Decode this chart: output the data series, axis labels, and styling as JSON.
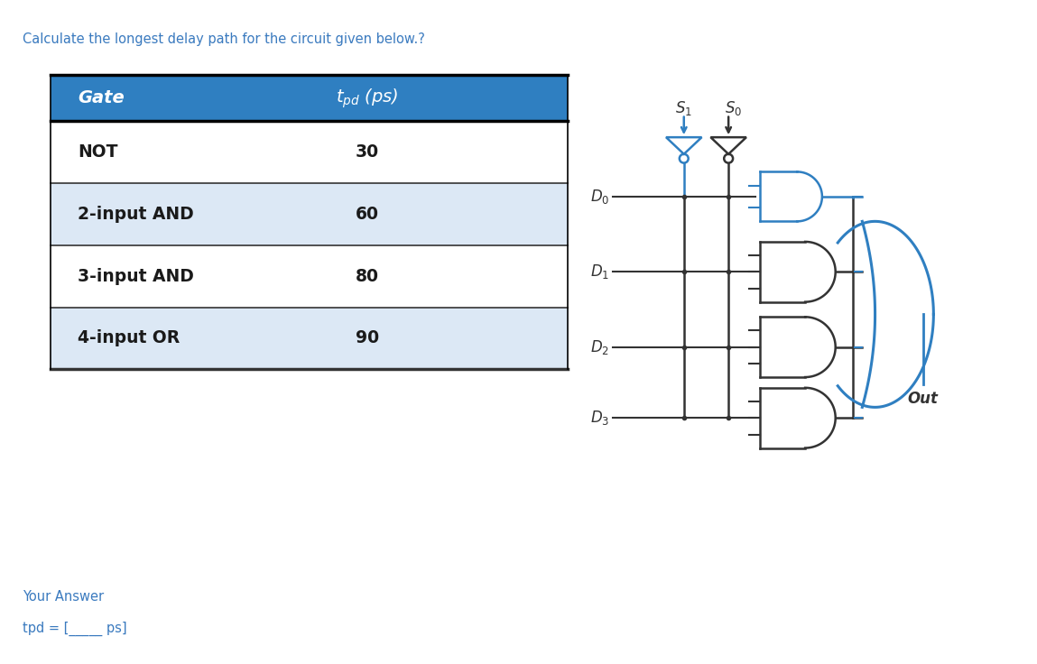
{
  "title_text": "Calculate the longest delay path for the circuit given below.?",
  "title_color": "#3a7abf",
  "title_fontsize": 10.5,
  "table_header_bg": "#2f7fc1",
  "table_header_text_color": "#ffffff",
  "table_row_bg_alt": "#dce8f5",
  "table_row_bg_white": "#ffffff",
  "gates": [
    "NOT",
    "2-input AND",
    "3-input AND",
    "4-input OR"
  ],
  "tpd": [
    30,
    60,
    80,
    90
  ],
  "your_answer_text": "Your Answer",
  "your_answer_color": "#3a7abf",
  "tpd_label": "tpd = [_____ ps]",
  "tpd_label_color": "#3a7abf",
  "circuit_blue": "#2f7fc1",
  "circuit_dark": "#333333",
  "bg_color": "#ffffff"
}
